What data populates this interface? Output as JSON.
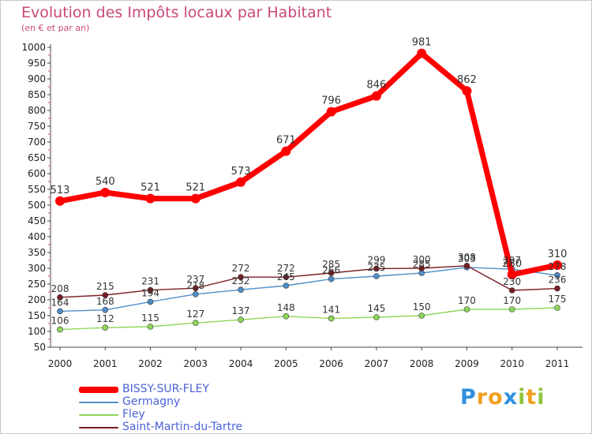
{
  "chart_data": {
    "type": "line",
    "title": "Evolution des Impôts locaux par Habitant",
    "subtitle": "(en € et par an)",
    "xlabel": "",
    "ylabel": "",
    "ylim": [
      50,
      1000
    ],
    "y_ticks": [
      "50",
      "100",
      "150",
      "200",
      "250",
      "300",
      "350",
      "400",
      "450",
      "500",
      "550",
      "600",
      "650",
      "700",
      "750",
      "800",
      "850",
      "900",
      "950",
      "1000"
    ],
    "categories": [
      "2000",
      "2001",
      "2002",
      "2003",
      "2004",
      "2005",
      "2006",
      "2007",
      "2008",
      "2009",
      "2010",
      "2011"
    ],
    "grid": false,
    "legend_position": "bottom-left",
    "series": [
      {
        "name": "BISSY-SUR-FLEY",
        "color": "#ff0000",
        "values": [
          513,
          540,
          521,
          521,
          573,
          671,
          796,
          846,
          981,
          862,
          280,
          310
        ],
        "labels": [
          "513",
          "540",
          "521",
          "521",
          "573",
          "671",
          "796",
          "846",
          "981",
          "862",
          "280",
          "310"
        ]
      },
      {
        "name": "Germagny",
        "color": "#4f8fc9",
        "values": [
          164,
          168,
          194,
          218,
          232,
          245,
          266,
          275,
          285,
          303,
          297,
          278
        ],
        "labels": [
          "164",
          "168",
          "194",
          "218",
          "232",
          "245",
          "266",
          "275",
          "285",
          "303",
          "297",
          "278"
        ]
      },
      {
        "name": "Fley",
        "color": "#8fd65a",
        "values": [
          106,
          112,
          115,
          127,
          137,
          148,
          141,
          145,
          150,
          170,
          170,
          175
        ],
        "labels": [
          "106",
          "112",
          "115",
          "127",
          "137",
          "148",
          "141",
          "145",
          "150",
          "170",
          "170",
          "175"
        ]
      },
      {
        "name": "Saint-Martin-du-Tartre",
        "color": "#7a1e24",
        "values": [
          208,
          215,
          231,
          237,
          272,
          272,
          285,
          299,
          300,
          308,
          230,
          236
        ],
        "labels": [
          "208",
          "215",
          "231",
          "237",
          "272",
          "272",
          "285",
          "299",
          "300",
          "308",
          "230",
          "236"
        ]
      }
    ]
  },
  "logo": {
    "letters": [
      "P",
      "r",
      "o",
      "x",
      "i",
      "t",
      "i"
    ],
    "colors": [
      "#2f8fe0",
      "#f0a020",
      "#f0a020",
      "#2f8fe0",
      "#8ec63f",
      "#f0a020",
      "#8ec63f"
    ]
  }
}
